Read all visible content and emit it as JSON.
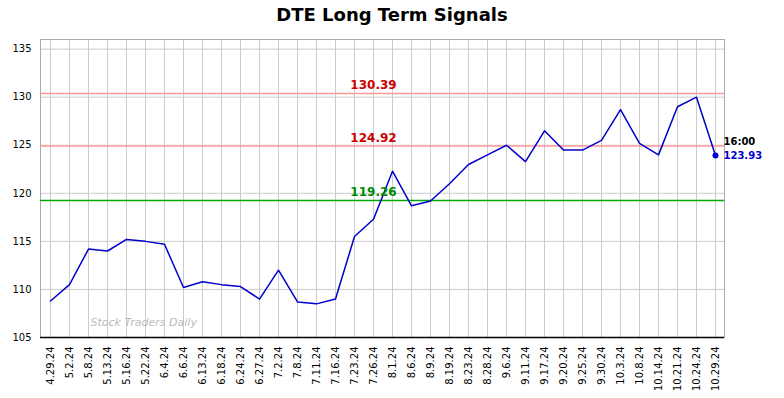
{
  "chart_data": {
    "type": "line",
    "title": "DTE Long Term Signals",
    "categories": [
      "4.29.24",
      "5.2.24",
      "5.8.24",
      "5.13.24",
      "5.16.24",
      "5.22.24",
      "6.4.24",
      "6.6.24",
      "6.13.24",
      "6.18.24",
      "6.24.24",
      "6.27.24",
      "7.2.24",
      "7.8.24",
      "7.11.24",
      "7.16.24",
      "7.23.24",
      "7.26.24",
      "8.1.24",
      "8.6.24",
      "8.9.24",
      "8.19.24",
      "8.23.24",
      "8.28.24",
      "9.6.24",
      "9.11.24",
      "9.17.24",
      "9.20.24",
      "9.25.24",
      "9.30.24",
      "10.3.24",
      "10.8.24",
      "10.14.24",
      "10.21.24",
      "10.24.24",
      "10.29.24"
    ],
    "values": [
      108.8,
      110.5,
      114.2,
      114.0,
      115.2,
      115.0,
      114.7,
      110.2,
      110.8,
      110.5,
      110.3,
      109.0,
      112.0,
      108.7,
      108.5,
      109.0,
      115.5,
      117.3,
      122.3,
      118.7,
      119.2,
      121.0,
      123.0,
      124.0,
      125.0,
      123.3,
      126.5,
      124.5,
      124.5,
      125.5,
      128.7,
      125.2,
      124.0,
      129.0,
      130.0,
      123.93
    ],
    "color": "#0000cc",
    "ylim": [
      105,
      136
    ],
    "yticks": [
      105,
      110,
      115,
      120,
      125,
      130,
      135
    ],
    "grid": true,
    "annotations": [
      {
        "text": "130.39",
        "y": 130.39,
        "color": "#cc0000",
        "line_color": "#ff9999"
      },
      {
        "text": "124.92",
        "y": 124.92,
        "color": "#cc0000",
        "line_color": "#ff9999"
      },
      {
        "text": "119.26",
        "y": 119.26,
        "color": "#008800",
        "line_color": "#00aa00"
      }
    ],
    "end_label": "16:00",
    "end_value_label": "123.93",
    "watermark": "Stock Traders Daily"
  }
}
